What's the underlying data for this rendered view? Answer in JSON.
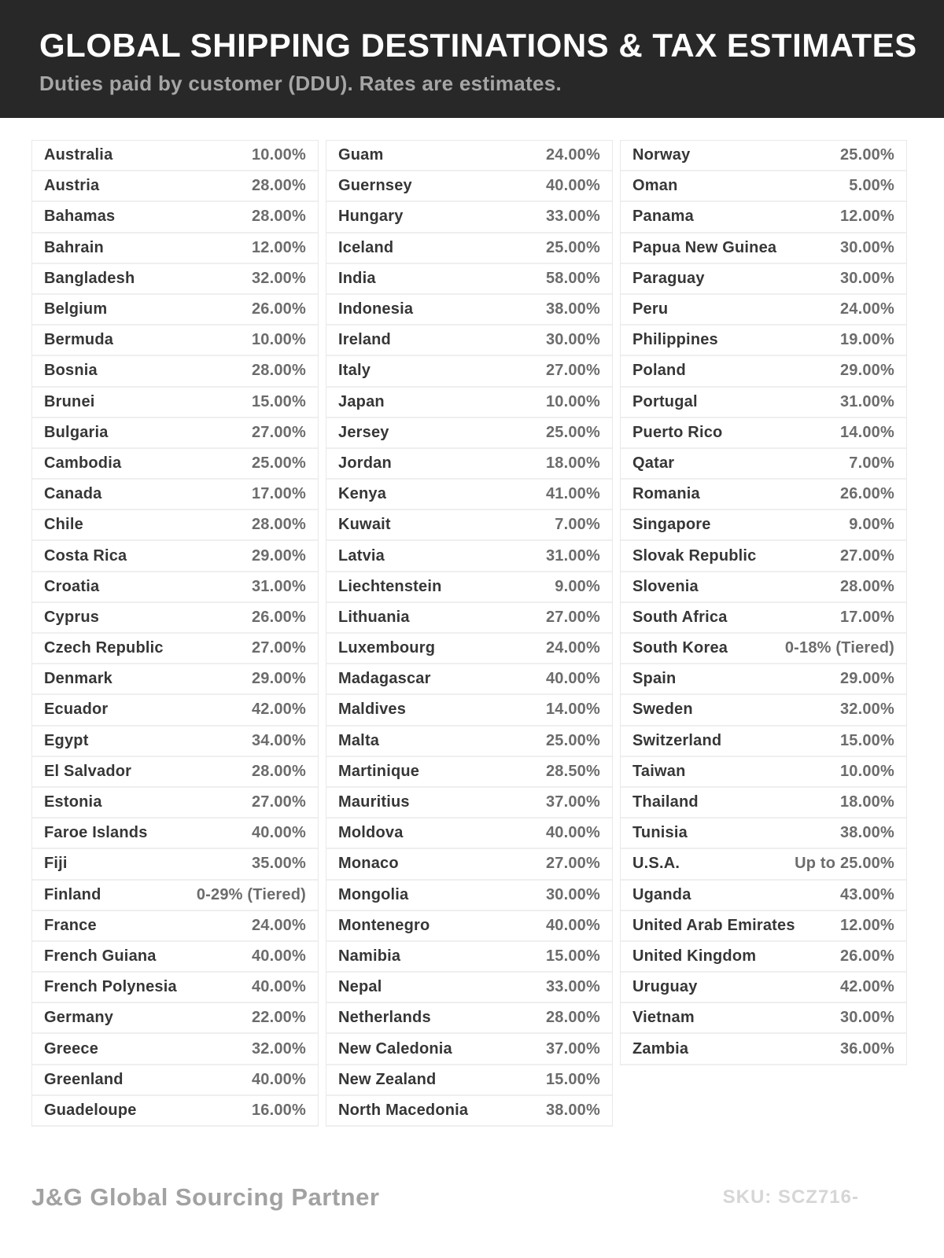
{
  "header": {
    "title": "GLOBAL SHIPPING DESTINATIONS & TAX ESTIMATES",
    "subtitle": "Duties paid by customer (DDU). Rates are estimates."
  },
  "colors": {
    "header_bg": "#282828",
    "title_text": "#ffffff",
    "subtitle_text": "#a6a6a6",
    "country_text": "#363636",
    "rate_text": "#6c6c6c",
    "row_border": "#efefef",
    "footer_brand": "#a2a2a2",
    "sku_text": "#d6d6d6"
  },
  "columns": [
    {
      "rows": [
        {
          "country": "Australia",
          "rate": "10.00%"
        },
        {
          "country": "Austria",
          "rate": "28.00%"
        },
        {
          "country": "Bahamas",
          "rate": "28.00%"
        },
        {
          "country": "Bahrain",
          "rate": "12.00%"
        },
        {
          "country": "Bangladesh",
          "rate": "32.00%"
        },
        {
          "country": "Belgium",
          "rate": "26.00%"
        },
        {
          "country": "Bermuda",
          "rate": "10.00%"
        },
        {
          "country": "Bosnia",
          "rate": "28.00%"
        },
        {
          "country": "Brunei",
          "rate": "15.00%"
        },
        {
          "country": "Bulgaria",
          "rate": "27.00%"
        },
        {
          "country": "Cambodia",
          "rate": "25.00%"
        },
        {
          "country": "Canada",
          "rate": "17.00%"
        },
        {
          "country": "Chile",
          "rate": "28.00%"
        },
        {
          "country": "Costa Rica",
          "rate": "29.00%"
        },
        {
          "country": "Croatia",
          "rate": "31.00%"
        },
        {
          "country": "Cyprus",
          "rate": "26.00%"
        },
        {
          "country": "Czech Republic",
          "rate": "27.00%"
        },
        {
          "country": "Denmark",
          "rate": "29.00%"
        },
        {
          "country": "Ecuador",
          "rate": "42.00%"
        },
        {
          "country": "Egypt",
          "rate": "34.00%"
        },
        {
          "country": "El Salvador",
          "rate": "28.00%"
        },
        {
          "country": "Estonia",
          "rate": "27.00%"
        },
        {
          "country": "Faroe Islands",
          "rate": "40.00%"
        },
        {
          "country": "Fiji",
          "rate": "35.00%"
        },
        {
          "country": "Finland",
          "rate": "0-29% (Tiered)"
        },
        {
          "country": "France",
          "rate": "24.00%"
        },
        {
          "country": "French Guiana",
          "rate": "40.00%"
        },
        {
          "country": "French Polynesia",
          "rate": "40.00%"
        },
        {
          "country": "Germany",
          "rate": "22.00%"
        },
        {
          "country": "Greece",
          "rate": "32.00%"
        },
        {
          "country": "Greenland",
          "rate": "40.00%"
        },
        {
          "country": "Guadeloupe",
          "rate": "16.00%"
        }
      ]
    },
    {
      "rows": [
        {
          "country": "Guam",
          "rate": "24.00%"
        },
        {
          "country": "Guernsey",
          "rate": "40.00%"
        },
        {
          "country": "Hungary",
          "rate": "33.00%"
        },
        {
          "country": "Iceland",
          "rate": "25.00%"
        },
        {
          "country": "India",
          "rate": "58.00%"
        },
        {
          "country": "Indonesia",
          "rate": "38.00%"
        },
        {
          "country": "Ireland",
          "rate": "30.00%"
        },
        {
          "country": "Italy",
          "rate": "27.00%"
        },
        {
          "country": "Japan",
          "rate": "10.00%"
        },
        {
          "country": "Jersey",
          "rate": "25.00%"
        },
        {
          "country": "Jordan",
          "rate": "18.00%"
        },
        {
          "country": "Kenya",
          "rate": "41.00%"
        },
        {
          "country": "Kuwait",
          "rate": "7.00%"
        },
        {
          "country": "Latvia",
          "rate": "31.00%"
        },
        {
          "country": "Liechtenstein",
          "rate": "9.00%"
        },
        {
          "country": "Lithuania",
          "rate": "27.00%"
        },
        {
          "country": "Luxembourg",
          "rate": "24.00%"
        },
        {
          "country": "Madagascar",
          "rate": "40.00%"
        },
        {
          "country": "Maldives",
          "rate": "14.00%"
        },
        {
          "country": "Malta",
          "rate": "25.00%"
        },
        {
          "country": "Martinique",
          "rate": "28.50%"
        },
        {
          "country": "Mauritius",
          "rate": "37.00%"
        },
        {
          "country": "Moldova",
          "rate": "40.00%"
        },
        {
          "country": "Monaco",
          "rate": "27.00%"
        },
        {
          "country": "Mongolia",
          "rate": "30.00%"
        },
        {
          "country": "Montenegro",
          "rate": "40.00%"
        },
        {
          "country": "Namibia",
          "rate": "15.00%"
        },
        {
          "country": "Nepal",
          "rate": "33.00%"
        },
        {
          "country": "Netherlands",
          "rate": "28.00%"
        },
        {
          "country": "New Caledonia",
          "rate": "37.00%"
        },
        {
          "country": "New Zealand",
          "rate": "15.00%"
        },
        {
          "country": "North Macedonia",
          "rate": "38.00%"
        }
      ]
    },
    {
      "rows": [
        {
          "country": "Norway",
          "rate": "25.00%"
        },
        {
          "country": "Oman",
          "rate": "5.00%"
        },
        {
          "country": "Panama",
          "rate": "12.00%"
        },
        {
          "country": "Papua New Guinea",
          "rate": "30.00%"
        },
        {
          "country": "Paraguay",
          "rate": "30.00%"
        },
        {
          "country": "Peru",
          "rate": "24.00%"
        },
        {
          "country": "Philippines",
          "rate": "19.00%"
        },
        {
          "country": "Poland",
          "rate": "29.00%"
        },
        {
          "country": "Portugal",
          "rate": "31.00%"
        },
        {
          "country": "Puerto Rico",
          "rate": "14.00%"
        },
        {
          "country": "Qatar",
          "rate": "7.00%"
        },
        {
          "country": "Romania",
          "rate": "26.00%"
        },
        {
          "country": "Singapore",
          "rate": "9.00%"
        },
        {
          "country": "Slovak Republic",
          "rate": "27.00%"
        },
        {
          "country": "Slovenia",
          "rate": "28.00%"
        },
        {
          "country": "South Africa",
          "rate": "17.00%"
        },
        {
          "country": "South Korea",
          "rate": "0-18% (Tiered)"
        },
        {
          "country": "Spain",
          "rate": "29.00%"
        },
        {
          "country": "Sweden",
          "rate": "32.00%"
        },
        {
          "country": "Switzerland",
          "rate": "15.00%"
        },
        {
          "country": "Taiwan",
          "rate": "10.00%"
        },
        {
          "country": "Thailand",
          "rate": "18.00%"
        },
        {
          "country": "Tunisia",
          "rate": "38.00%"
        },
        {
          "country": "U.S.A.",
          "rate": "Up to 25.00%"
        },
        {
          "country": "Uganda",
          "rate": "43.00%"
        },
        {
          "country": "United Arab Emirates",
          "rate": "12.00%"
        },
        {
          "country": "United Kingdom",
          "rate": "26.00%"
        },
        {
          "country": "Uruguay",
          "rate": "42.00%"
        },
        {
          "country": "Vietnam",
          "rate": "30.00%"
        },
        {
          "country": "Zambia",
          "rate": "36.00%"
        }
      ]
    }
  ],
  "footer": {
    "brand": "J&G Global Sourcing Partner",
    "sku": "SKU: SCZ716-"
  }
}
